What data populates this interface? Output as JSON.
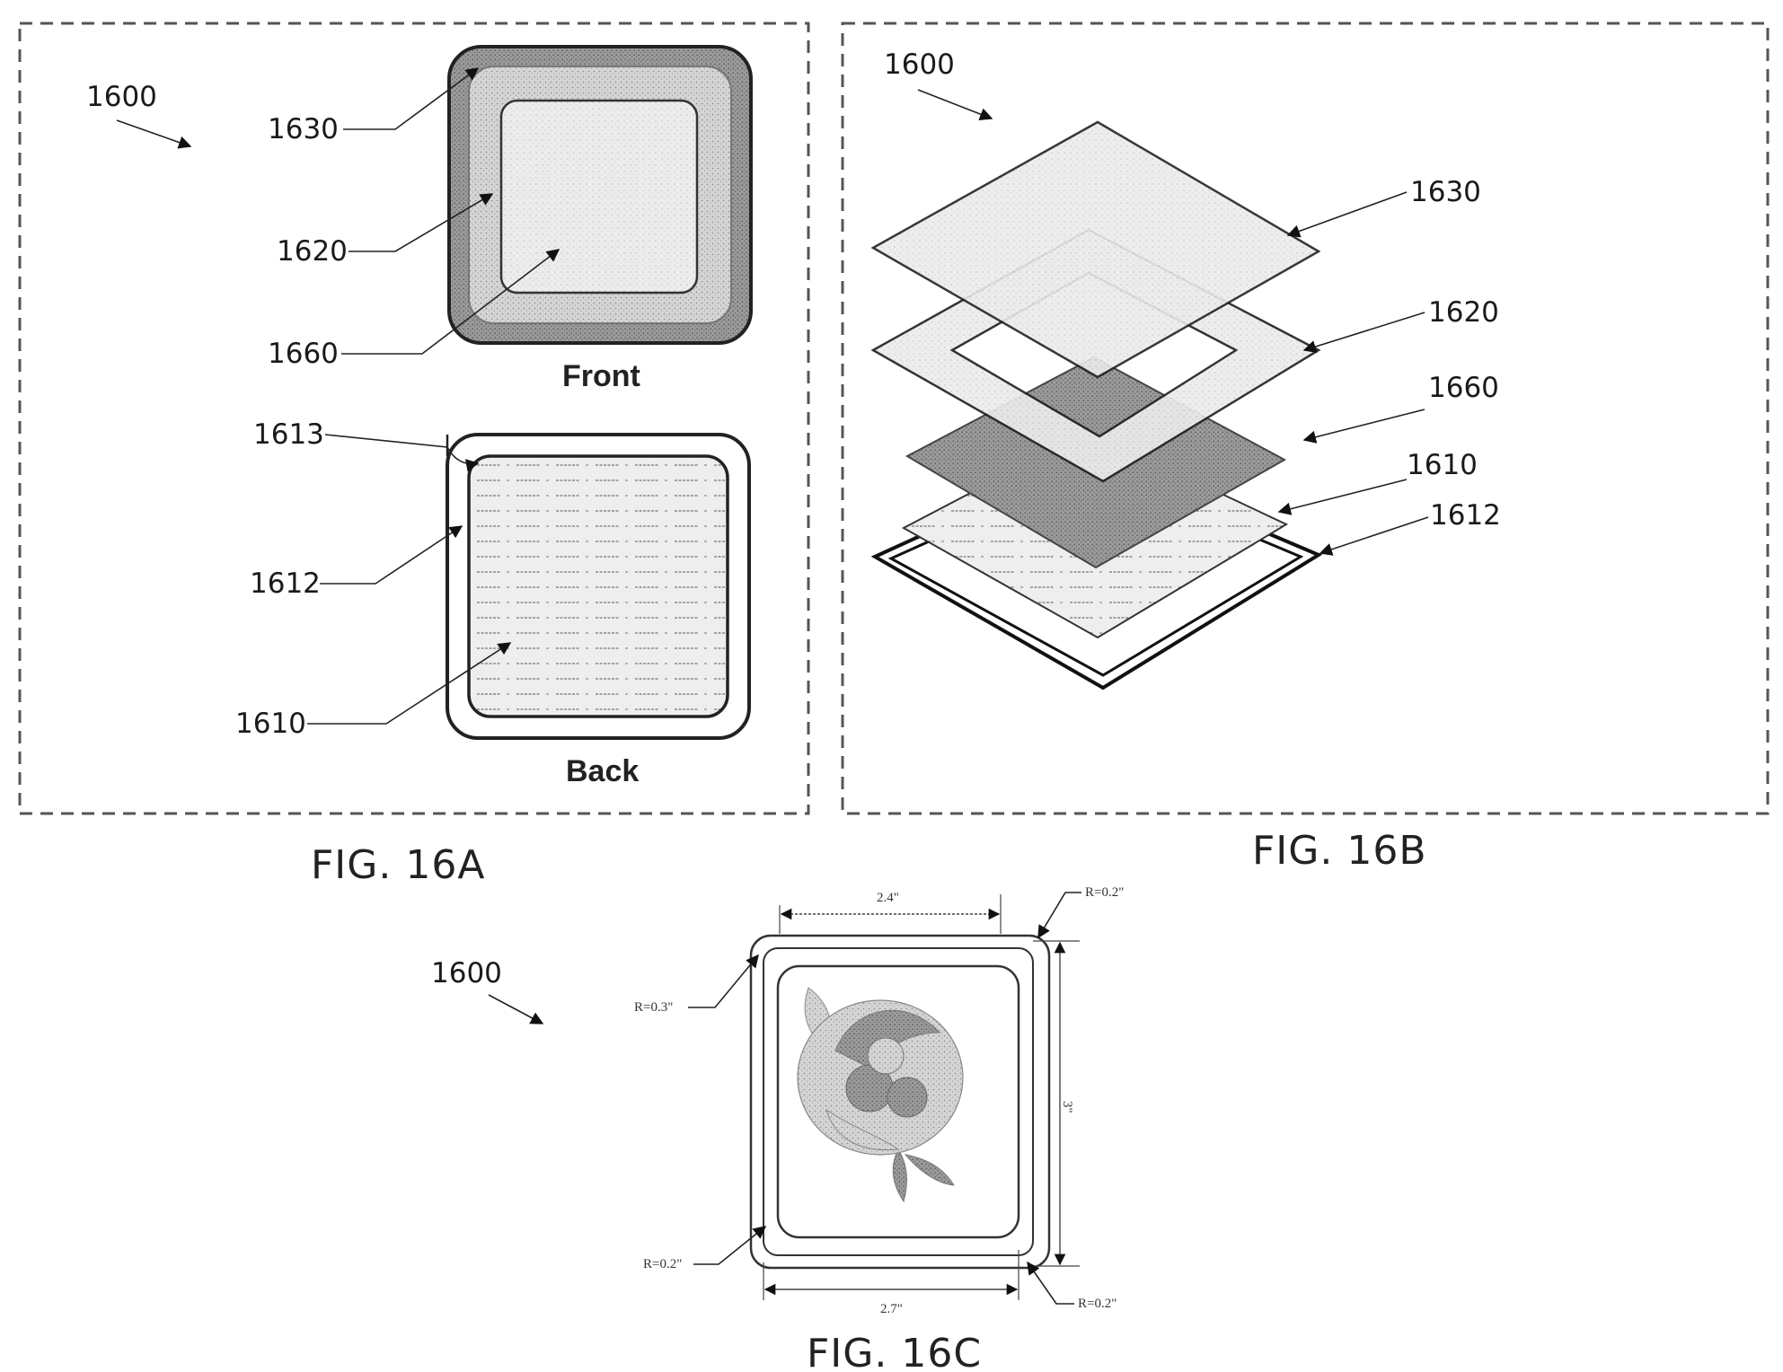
{
  "fig16a": {
    "caption": "FIG. 16A",
    "front_label": "Front",
    "back_label": "Back",
    "refs": {
      "r1600": "1600",
      "r1630": "1630",
      "r1620": "1620",
      "r1660": "1660",
      "r1613": "1613",
      "r1612": "1612",
      "r1610": "1610"
    }
  },
  "fig16b": {
    "caption": "FIG. 16B",
    "refs": {
      "r1600": "1600",
      "r1630": "1630",
      "r1620": "1620",
      "r1660": "1660",
      "r1610": "1610",
      "r1612": "1612"
    }
  },
  "fig16c": {
    "caption": "FIG. 16C",
    "refs": {
      "r1600": "1600"
    },
    "dimensions": {
      "width_top": "2.4\"",
      "width_bottom": "2.7\"",
      "height": "3\"",
      "radius_top_right": "R=0.2\"",
      "radius_top_left": "R=0.3\"",
      "radius_bottom_left": "R=0.2\"",
      "radius_bottom_right": "R=0.2\""
    }
  },
  "colors": {
    "ink": "#1a1a1a",
    "dark_gray": "#8a8a8a",
    "mid_gray": "#a8a8a8",
    "light_gray": "#cfcfcf"
  }
}
